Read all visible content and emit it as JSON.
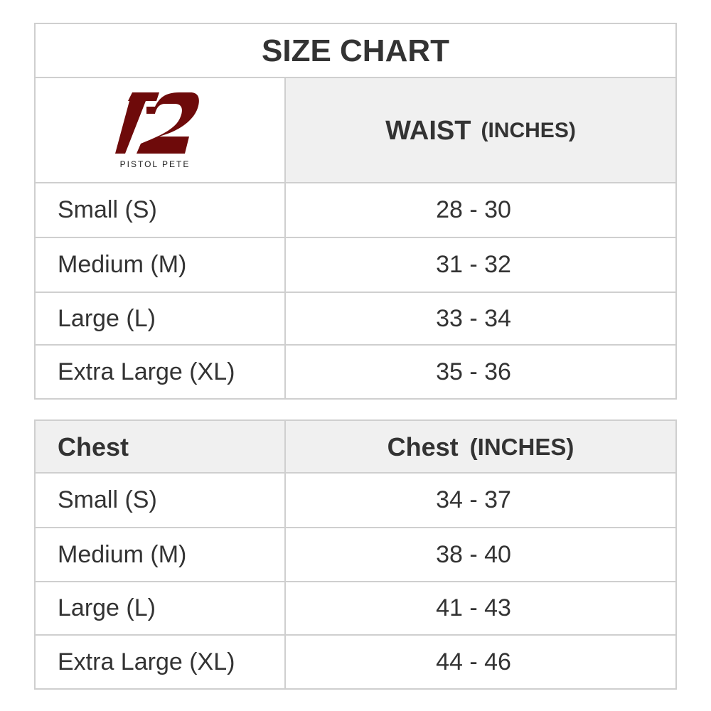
{
  "title": "SIZE CHART",
  "brand": {
    "name": "PISTOL PETE",
    "logo_color": "#6e0a0a"
  },
  "waist_table": {
    "header": {
      "label": "WAIST",
      "unit": "(INCHES)"
    },
    "rows": [
      {
        "size": "Small (S)",
        "value": "28 - 30"
      },
      {
        "size": "Medium (M)",
        "value": "31 - 32"
      },
      {
        "size": "Large (L)",
        "value": "33 - 34"
      },
      {
        "size": "Extra Large (XL)",
        "value": "35 - 36"
      }
    ]
  },
  "chest_table": {
    "header": {
      "col1": "Chest",
      "label": "Chest",
      "unit": "(INCHES)"
    },
    "rows": [
      {
        "size": "Small (S)",
        "value": "34 - 37"
      },
      {
        "size": "Medium (M)",
        "value": "38 - 40"
      },
      {
        "size": "Large (L)",
        "value": "41 - 43"
      },
      {
        "size": "Extra Large (XL)",
        "value": "44 - 46"
      }
    ]
  },
  "colors": {
    "border": "#cfcfcf",
    "header_bg": "#f0f0f0",
    "text": "#333333"
  }
}
